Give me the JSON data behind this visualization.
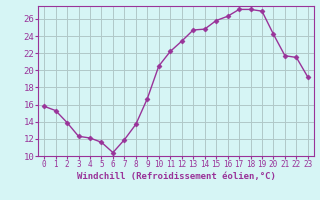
{
  "x": [
    0,
    1,
    2,
    3,
    4,
    5,
    6,
    7,
    8,
    9,
    10,
    11,
    12,
    13,
    14,
    15,
    16,
    17,
    18,
    19,
    20,
    21,
    22,
    23
  ],
  "y": [
    15.8,
    15.3,
    13.9,
    12.3,
    12.1,
    11.6,
    10.4,
    11.9,
    13.7,
    16.7,
    20.5,
    22.2,
    23.4,
    24.7,
    24.8,
    25.8,
    26.3,
    27.1,
    27.1,
    26.9,
    24.2,
    21.7,
    21.5,
    19.2
  ],
  "line_color": "#993399",
  "marker": "D",
  "marker_size": 2.5,
  "bg_color": "#d6f5f5",
  "grid_color": "#b0c8c8",
  "xlabel": "Windchill (Refroidissement éolien,°C)",
  "ylabel": "",
  "xlim": [
    -0.5,
    23.5
  ],
  "ylim": [
    10,
    27.5
  ],
  "yticks": [
    10,
    12,
    14,
    16,
    18,
    20,
    22,
    24,
    26
  ],
  "xticks": [
    0,
    1,
    2,
    3,
    4,
    5,
    6,
    7,
    8,
    9,
    10,
    11,
    12,
    13,
    14,
    15,
    16,
    17,
    18,
    19,
    20,
    21,
    22,
    23
  ],
  "axis_color": "#993399",
  "label_color": "#993399"
}
